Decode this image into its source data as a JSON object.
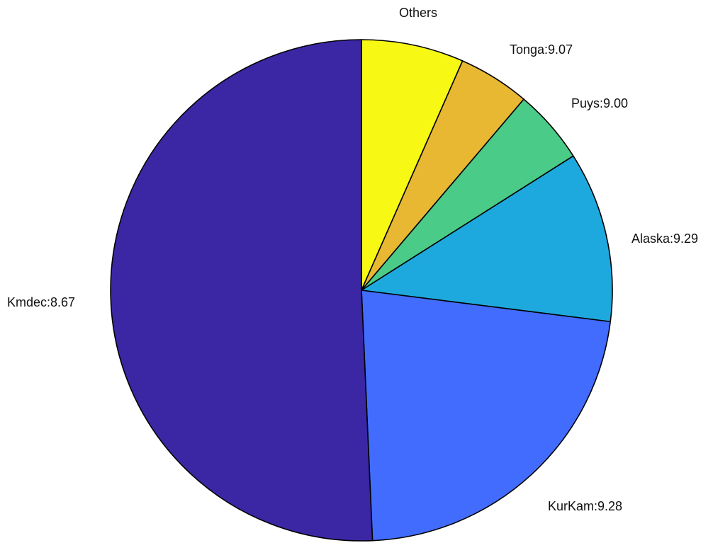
{
  "chart_data": {
    "type": "pie",
    "title": "",
    "slices": [
      {
        "label": "Others",
        "value": 6.6,
        "color": "#f7f914"
      },
      {
        "label": "Tonga:9.07",
        "value": 4.6,
        "color": "#e8b833"
      },
      {
        "label": "Puys:9.00",
        "value": 4.8,
        "color": "#4acb88"
      },
      {
        "label": "Alaska:9.29",
        "value": 11.0,
        "color": "#1ea9de"
      },
      {
        "label": "KurKam:9.28",
        "value": 22.3,
        "color": "#426cfd"
      },
      {
        "label": "Kmdec:8.67",
        "value": 50.7,
        "color": "#3b27a4"
      }
    ],
    "start": "top",
    "direction": "clockwise",
    "legend": "none"
  }
}
